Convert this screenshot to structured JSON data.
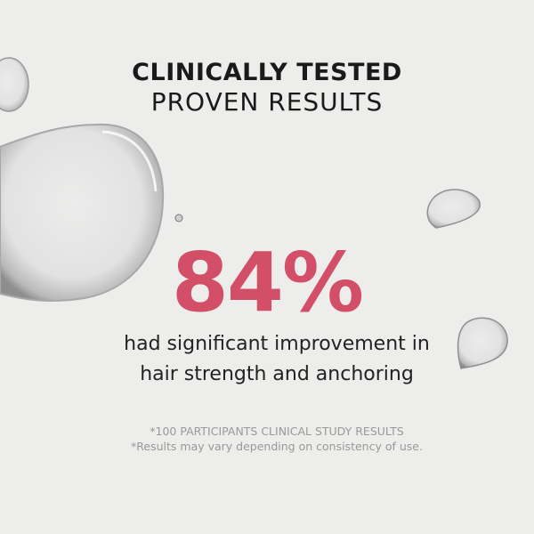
{
  "headline": {
    "line1": "CLINICALLY TESTED",
    "line2": "PROVEN RESULTS"
  },
  "stat": {
    "value": "84%",
    "color": "#d34f67"
  },
  "description": {
    "line1": "had significant improvement in",
    "line2": "hair strength and anchoring"
  },
  "footnotes": {
    "line1": "*100 PARTICIPANTS CLINICAL STUDY RESULTS",
    "line2": "*Results may vary depending on consistency of use."
  }
}
